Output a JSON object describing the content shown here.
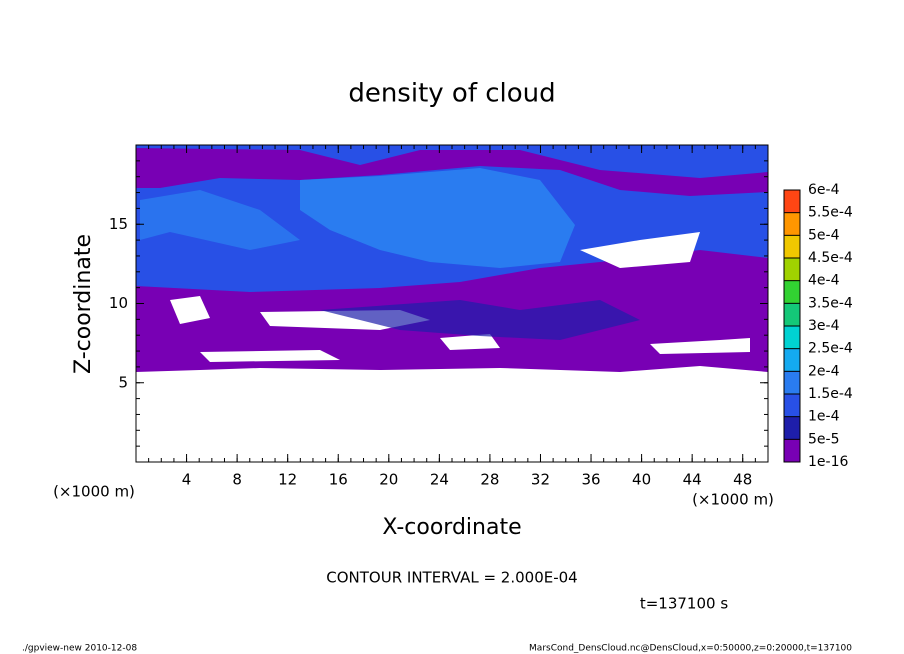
{
  "chart_data": {
    "type": "contour",
    "title": "density of cloud",
    "x_label": "X-coordinate",
    "y_label": "Z-coordinate",
    "x_unit": "(×1000 m)",
    "y_unit": "(×1000 m)",
    "xlim": [
      0,
      50
    ],
    "ylim": [
      0,
      20
    ],
    "xticks": [
      4,
      8,
      12,
      16,
      20,
      24,
      28,
      32,
      36,
      40,
      44,
      48
    ],
    "yticks": [
      5,
      10,
      15
    ],
    "colorbar": {
      "levels": [
        {
          "value": 1e-16,
          "label": "1e-16"
        },
        {
          "value": 5e-05,
          "label": "5e-5"
        },
        {
          "value": 0.0001,
          "label": "1e-4"
        },
        {
          "value": 0.00015,
          "label": "1.5e-4"
        },
        {
          "value": 0.0002,
          "label": "2e-4"
        },
        {
          "value": 0.00025,
          "label": "2.5e-4"
        },
        {
          "value": 0.0003,
          "label": "3e-4"
        },
        {
          "value": 0.00035,
          "label": "3.5e-4"
        },
        {
          "value": 0.0004,
          "label": "4e-4"
        },
        {
          "value": 0.00045,
          "label": "4.5e-4"
        },
        {
          "value": 0.0005,
          "label": "5e-4"
        },
        {
          "value": 0.00055,
          "label": "5.5e-4"
        },
        {
          "value": 0.0006,
          "label": "6e-4"
        }
      ],
      "colors": [
        "#7800b4",
        "#1e1eaa",
        "#2850e6",
        "#2a7cf0",
        "#14aaf0",
        "#00d2d2",
        "#14c878",
        "#32d232",
        "#a0d200",
        "#f0c800",
        "#ff9600",
        "#ff4614"
      ]
    },
    "contour_interval": "CONTOUR INTERVAL = 2.000E-04",
    "time_label": "t=137100 s",
    "footer_left": "./gpview-new  2010-12-08",
    "footer_right": "MarsCond_DensCloud.nc@DensCloud,x=0:50000,z=0:20000,t=137100"
  }
}
